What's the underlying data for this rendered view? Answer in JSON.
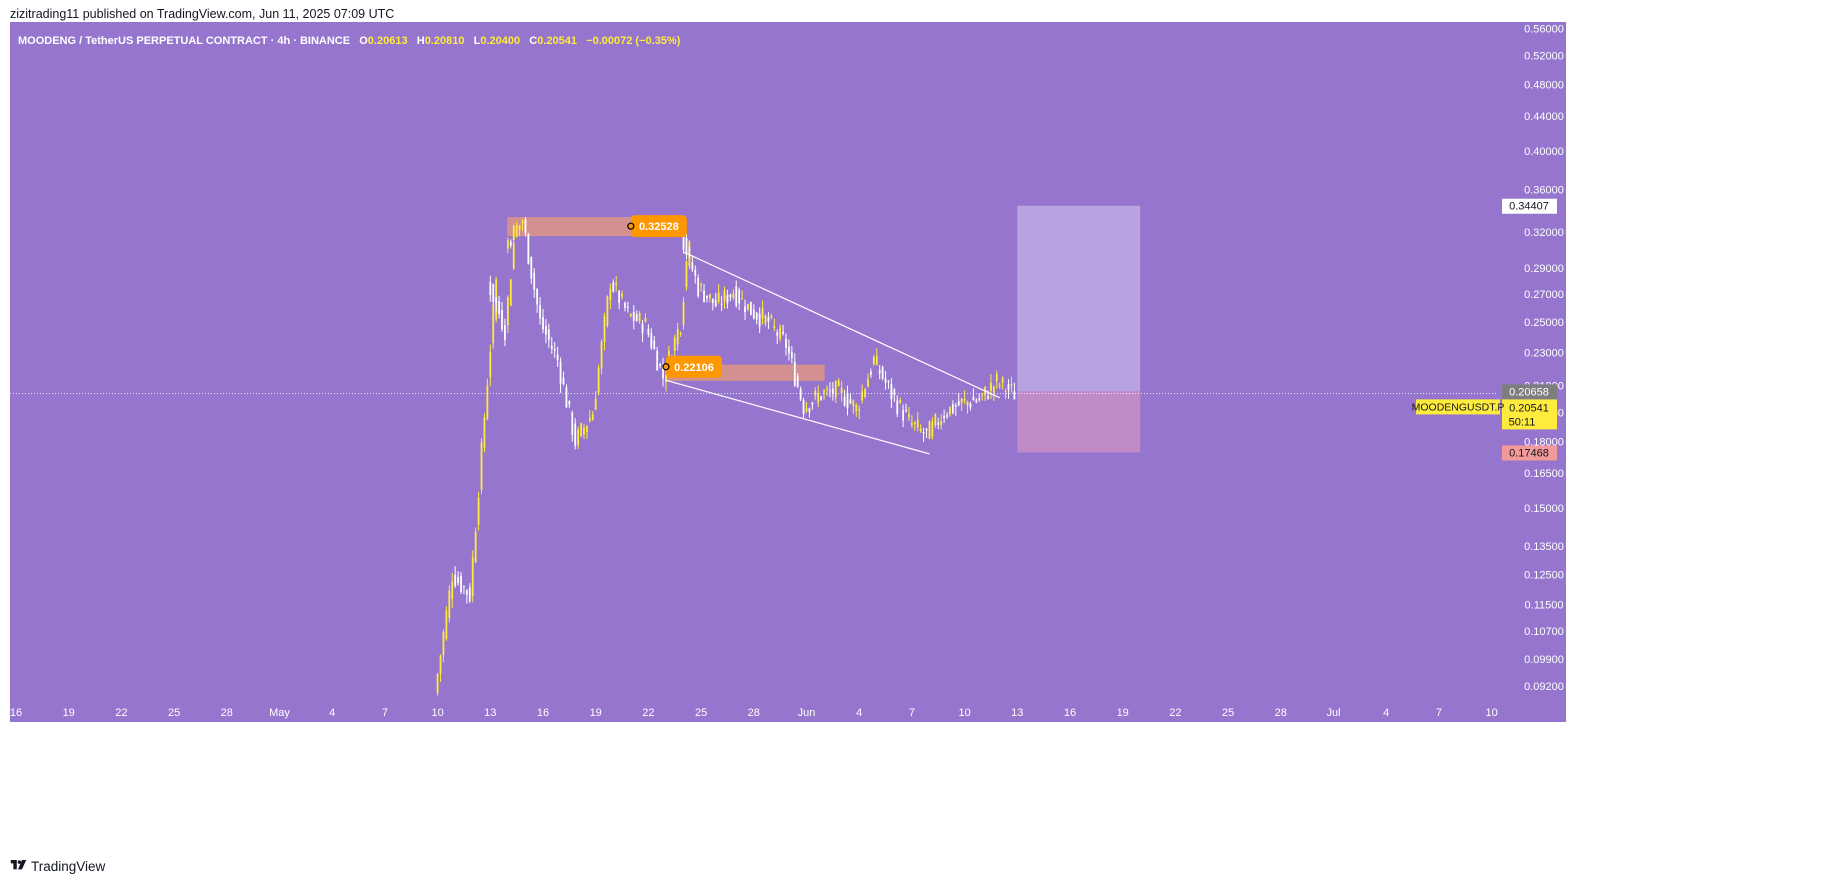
{
  "publisher_line": "zizitrading11 published on TradingView.com, Jun 11, 2025 07:09 UTC",
  "footer_brand": "TradingView",
  "legend": {
    "title": "MOODENG / TetherUS PERPETUAL CONTRACT · 4h · BINANCE",
    "o_label": "O",
    "o": "0.20613",
    "h_label": "H",
    "h": "0.20810",
    "l_label": "L",
    "l": "0.20400",
    "c_label": "C",
    "c": "0.20541",
    "change": "−0.00072 (−0.35%)"
  },
  "colors": {
    "background": "#9575cd",
    "up_candle": "#ffeb3b",
    "down_candle": "#ffffff",
    "zone_fill": "#e89a7e",
    "marker": "#ff9800",
    "target_fill": "#b9a5e0",
    "stop_fill": "#c38cc6",
    "price_tag": "#ffeb3b",
    "stop_tag": "#f29a9a",
    "current_tag": "#7e7e7e"
  },
  "chart_data": {
    "type": "candlestick",
    "symbol": "MOODENGUSDT.P",
    "interval": "4h",
    "y_scale": "log",
    "ylim": [
      0.088,
      0.57
    ],
    "x_ticks": [
      "16",
      "19",
      "22",
      "25",
      "28",
      "May",
      "4",
      "7",
      "10",
      "13",
      "16",
      "19",
      "22",
      "25",
      "28",
      "Jun",
      "4",
      "7",
      "10",
      "13",
      "16",
      "19",
      "22",
      "25",
      "28",
      "Jul",
      "4",
      "7",
      "10"
    ],
    "y_ticks": [
      "0.56000",
      "0.52000",
      "0.48000",
      "0.44000",
      "0.40000",
      "0.36000",
      "0.32000",
      "0.29000",
      "0.27000",
      "0.25000",
      "0.23000",
      "0.21000",
      "0.19500",
      "0.18000",
      "0.16500",
      "0.15000",
      "0.13500",
      "0.12500",
      "0.11500",
      "0.10700",
      "0.09900",
      "0.09200"
    ],
    "price_path": [
      {
        "date": "May 9",
        "close": 0.09
      },
      {
        "date": "May 10",
        "close": 0.125
      },
      {
        "date": "May 11",
        "close": 0.118
      },
      {
        "date": "May 12",
        "close": 0.213
      },
      {
        "date": "May 12",
        "close": 0.28
      },
      {
        "date": "May 13",
        "close": 0.245
      },
      {
        "date": "May 13",
        "close": 0.31
      },
      {
        "date": "May 14",
        "close": 0.33
      },
      {
        "date": "May 15",
        "close": 0.25
      },
      {
        "date": "May 16",
        "close": 0.225
      },
      {
        "date": "May 17",
        "close": 0.18
      },
      {
        "date": "May 18",
        "close": 0.195
      },
      {
        "date": "May 19",
        "close": 0.28
      },
      {
        "date": "May 20",
        "close": 0.255
      },
      {
        "date": "May 21",
        "close": 0.248
      },
      {
        "date": "May 22",
        "close": 0.215
      },
      {
        "date": "May 23",
        "close": 0.25
      },
      {
        "date": "May 23",
        "close": 0.32
      },
      {
        "date": "May 24",
        "close": 0.275
      },
      {
        "date": "May 25",
        "close": 0.262
      },
      {
        "date": "May 26",
        "close": 0.272
      },
      {
        "date": "May 27",
        "close": 0.258
      },
      {
        "date": "May 28",
        "close": 0.25
      },
      {
        "date": "May 29",
        "close": 0.235
      },
      {
        "date": "May 30",
        "close": 0.198
      },
      {
        "date": "May 31",
        "close": 0.205
      },
      {
        "date": "Jun 1",
        "close": 0.207
      },
      {
        "date": "Jun 2",
        "close": 0.197
      },
      {
        "date": "Jun 3",
        "close": 0.225
      },
      {
        "date": "Jun 4",
        "close": 0.205
      },
      {
        "date": "Jun 5",
        "close": 0.19
      },
      {
        "date": "Jun 6",
        "close": 0.183
      },
      {
        "date": "Jun 7",
        "close": 0.195
      },
      {
        "date": "Jun 8",
        "close": 0.2
      },
      {
        "date": "Jun 9",
        "close": 0.202
      },
      {
        "date": "Jun 10",
        "close": 0.212
      },
      {
        "date": "Jun 11",
        "close": 0.20541
      }
    ],
    "annotations": {
      "supply_zone": {
        "from": "May 13",
        "to": "May 23",
        "low": 0.317,
        "high": 0.333
      },
      "demand_zone": {
        "from": "May 22",
        "to": "May 31",
        "low": 0.213,
        "high": 0.222
      },
      "marker_high": "0.32528",
      "marker_low": "0.22106",
      "wedge_upper": [
        {
          "date": "May 23",
          "price": 0.303
        },
        {
          "date": "Jun 10",
          "price": 0.203
        }
      ],
      "wedge_lower": [
        {
          "date": "May 22",
          "price": 0.213
        },
        {
          "date": "Jun 6",
          "price": 0.174
        }
      ],
      "position": {
        "from": "Jun 11",
        "to": "Jun 18",
        "entry": 0.20658,
        "target": 0.34407,
        "stop": 0.17468
      }
    },
    "price_tags": {
      "target": "0.34407",
      "current": "0.20658",
      "last": "0.20541",
      "countdown": "50:11",
      "stop": "0.17468",
      "symbol_label": "MOODENGUSDT.P"
    }
  }
}
